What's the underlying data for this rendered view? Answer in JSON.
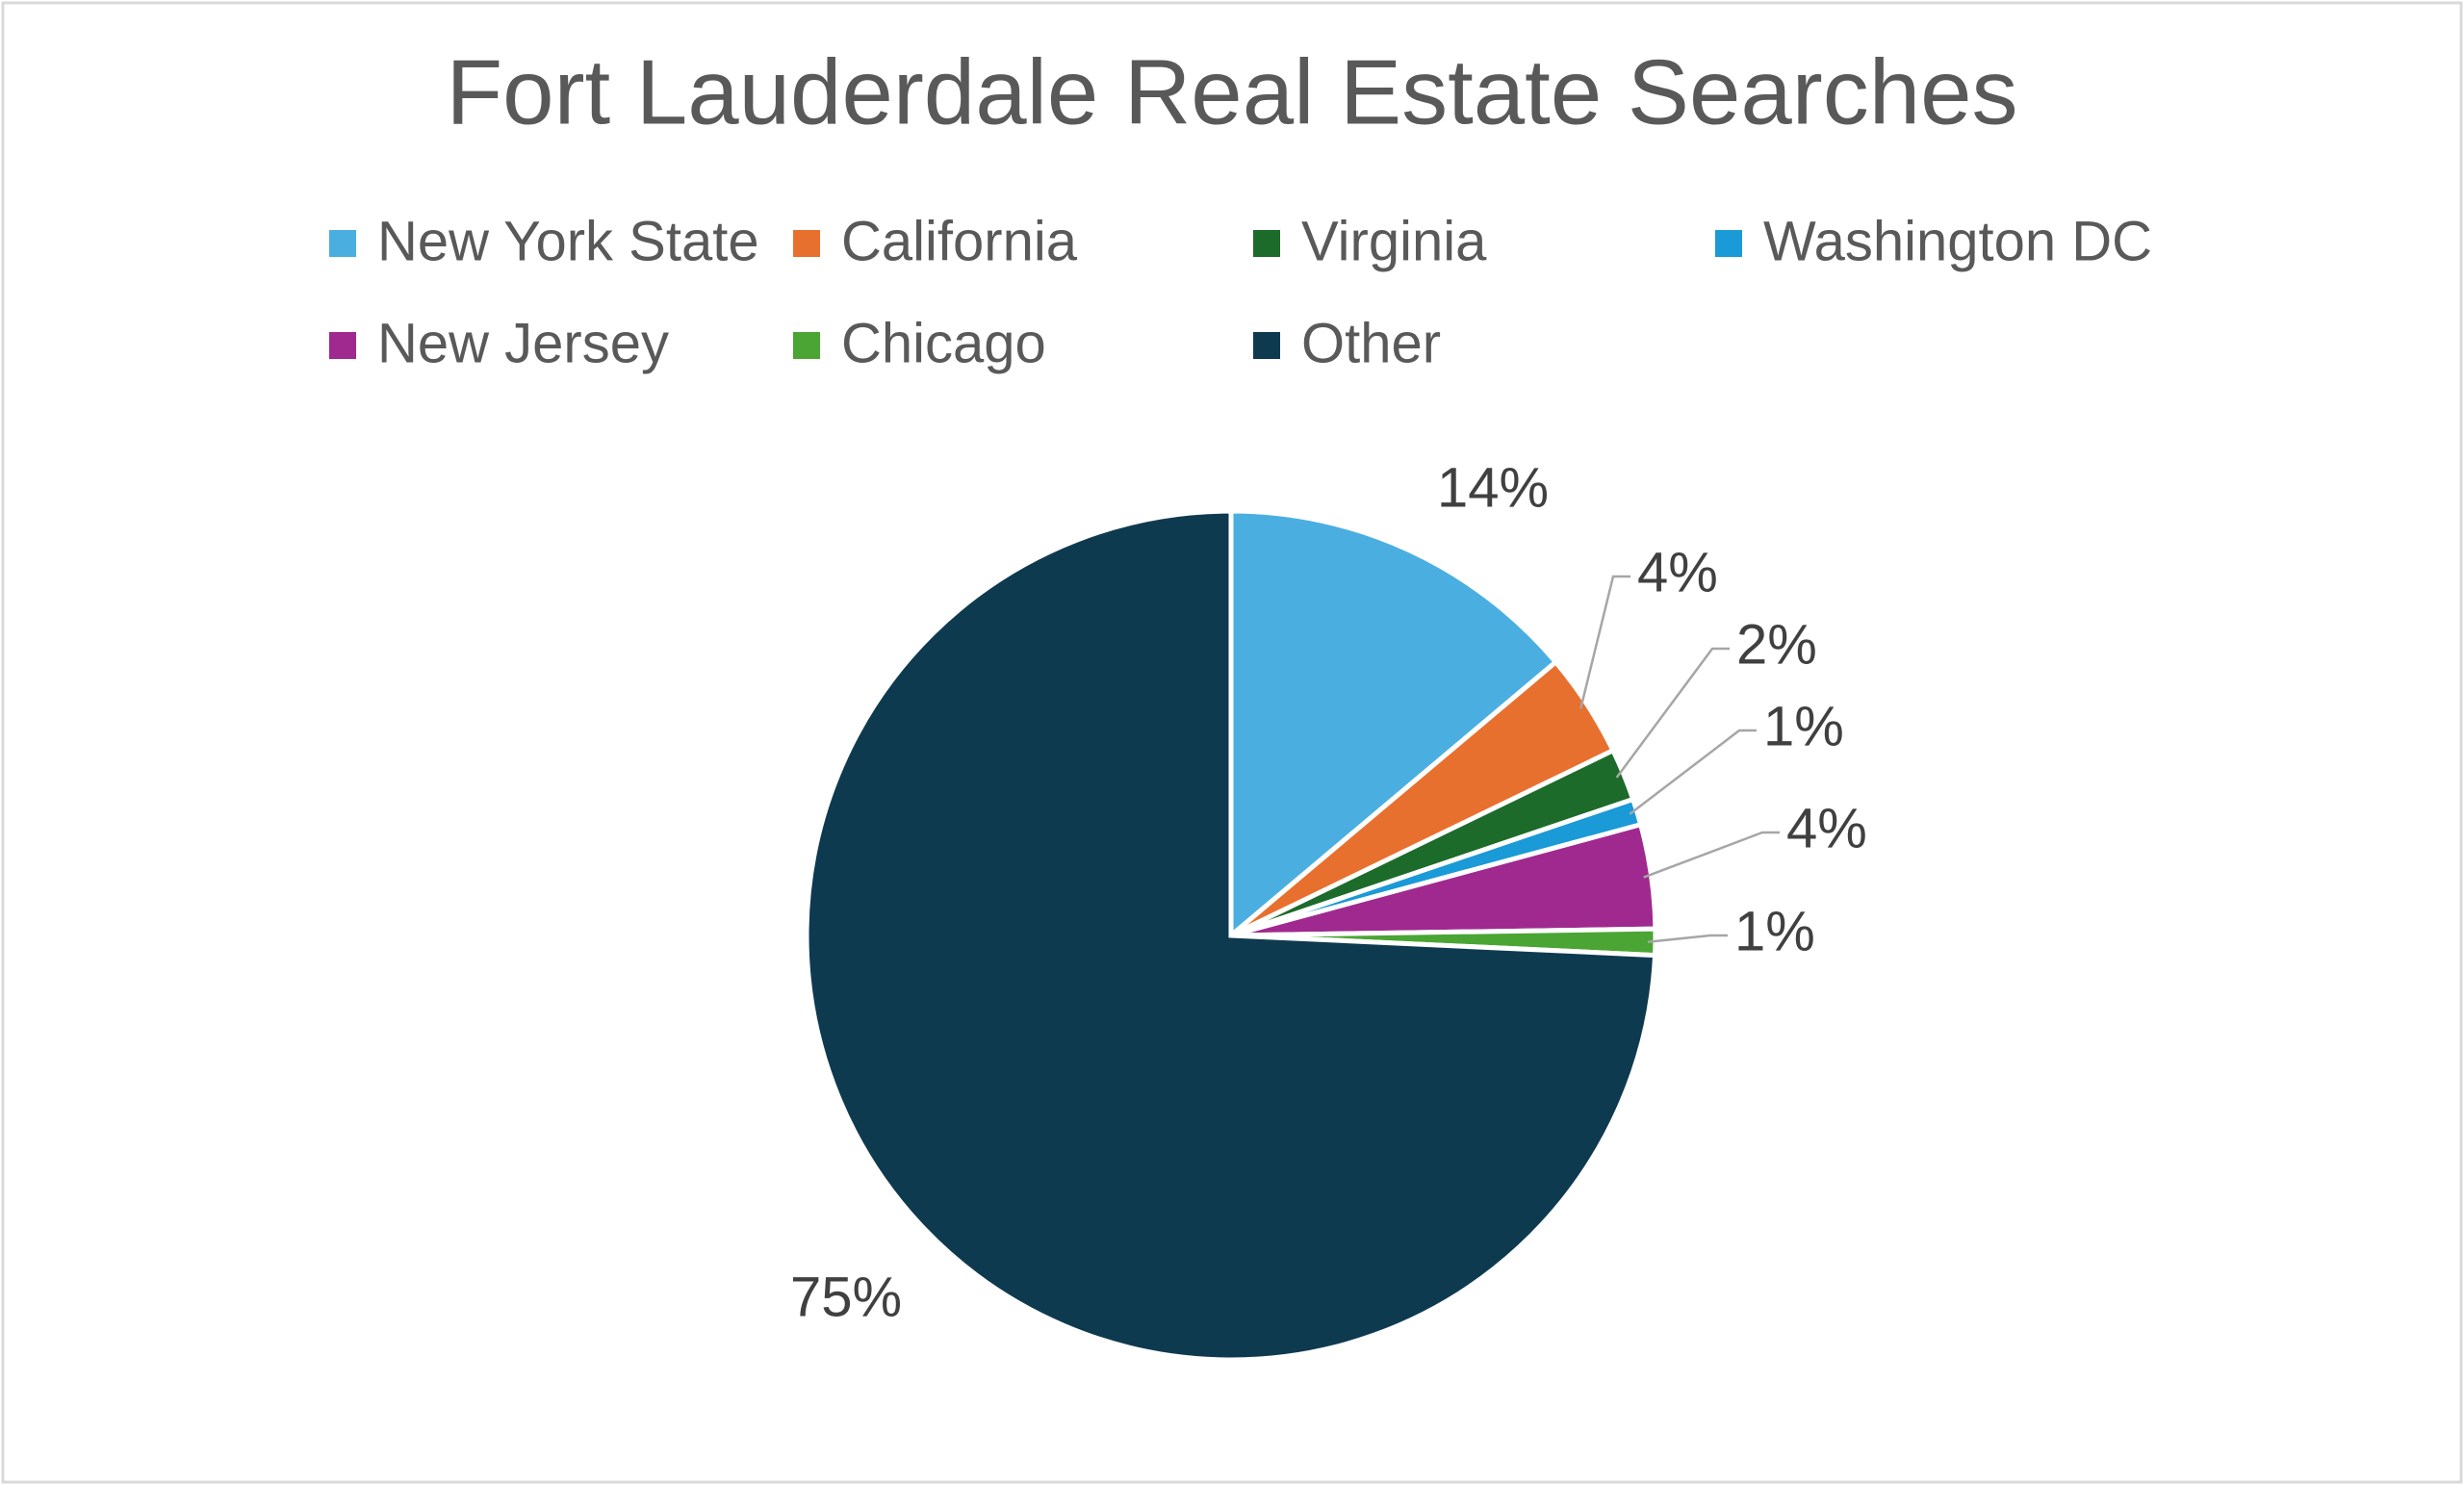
{
  "chart_data": {
    "type": "pie",
    "title": "Fort Lauderdale Real Estate Searches",
    "categories": [
      "New York State",
      "California",
      "Virginia",
      "Washington DC",
      "New Jersey",
      "Chicago",
      "Other"
    ],
    "values": [
      14,
      4,
      2,
      1,
      4,
      1,
      75
    ],
    "value_labels": [
      "14%",
      "4%",
      "2%",
      "1%",
      "4%",
      "1%",
      "75%"
    ],
    "colors": [
      "#4aafe0",
      "#e8702f",
      "#1c6b2a",
      "#1a9ad6",
      "#a0298f",
      "#4aa534",
      "#0e3a50"
    ],
    "legend": "top"
  }
}
